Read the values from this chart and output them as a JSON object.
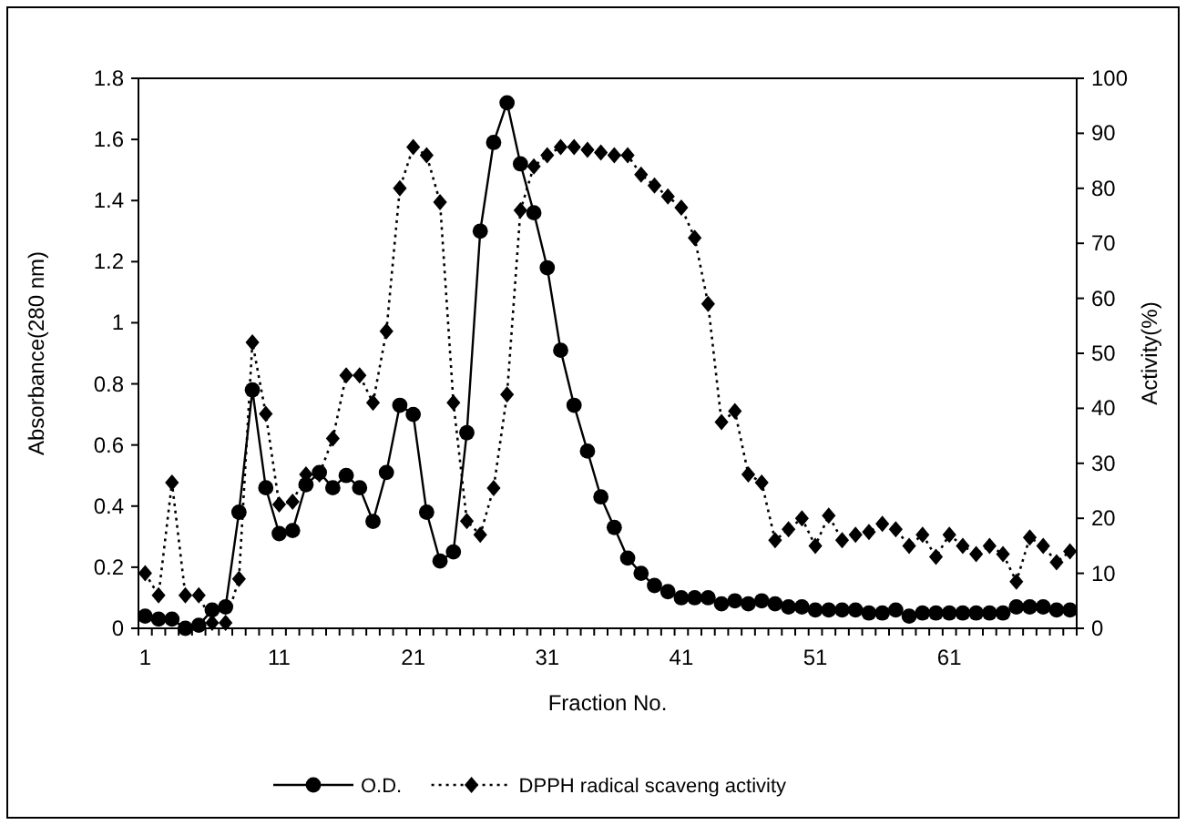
{
  "chart_data": {
    "type": "line",
    "xlabel": "Fraction No.",
    "ylabel": "Absorbance(280 nm)",
    "y2label": "Activity(%)",
    "categories": [
      "1",
      null,
      null,
      null,
      null,
      null,
      null,
      null,
      null,
      null,
      "11",
      null,
      null,
      null,
      null,
      null,
      null,
      null,
      null,
      null,
      "21",
      null,
      null,
      null,
      null,
      null,
      null,
      null,
      null,
      null,
      "31",
      null,
      null,
      null,
      null,
      null,
      null,
      null,
      null,
      null,
      "41",
      null,
      null,
      null,
      null,
      null,
      null,
      null,
      null,
      null,
      "51",
      null,
      null,
      null,
      null,
      null,
      null,
      null,
      null,
      null,
      "61",
      null,
      null,
      null,
      null,
      null,
      null,
      null,
      null,
      null
    ],
    "ylim": [
      0,
      1.8
    ],
    "yticks": [
      0,
      0.2,
      0.4,
      0.6,
      0.8,
      1,
      1.2,
      1.4,
      1.6,
      1.8
    ],
    "y2lim": [
      0,
      100
    ],
    "y2ticks": [
      0,
      10,
      20,
      30,
      40,
      50,
      60,
      70,
      80,
      90,
      100
    ],
    "legend": "bottom",
    "grid": false,
    "series": [
      {
        "name": "O.D.",
        "color": "#000000",
        "marker": "circle",
        "line_style": "solid",
        "values": [
          0.04,
          0.03,
          0.03,
          0.0,
          0.01,
          0.06,
          0.07,
          0.38,
          0.78,
          0.46,
          0.31,
          0.32,
          0.47,
          0.51,
          0.46,
          0.5,
          0.46,
          0.35,
          0.51,
          0.73,
          0.7,
          0.38,
          0.22,
          0.25,
          0.64,
          1.3,
          1.59,
          1.72,
          1.52,
          1.36,
          1.18,
          0.91,
          0.73,
          0.58,
          0.43,
          0.33,
          0.23,
          0.18,
          0.14,
          0.12,
          0.1,
          0.1,
          0.1,
          0.08,
          0.09,
          0.08,
          0.09,
          0.08,
          0.07,
          0.07,
          0.06,
          0.06,
          0.06,
          0.06,
          0.05,
          0.05,
          0.06,
          0.04,
          0.05,
          0.05,
          0.05,
          0.05,
          0.05,
          0.05,
          0.05,
          0.07,
          0.07,
          0.07,
          0.06,
          0.06
        ]
      },
      {
        "name": "DPPH radical scaveng activity",
        "color": "#000000",
        "marker": "diamond",
        "line_style": "dotted",
        "axis": "y2",
        "values": [
          10,
          6,
          26.5,
          6,
          6,
          1,
          1,
          9,
          52,
          39,
          22.5,
          23,
          28,
          28,
          34.5,
          46,
          46,
          41,
          54,
          80,
          87.5,
          86,
          77.5,
          41,
          19.5,
          17,
          25.5,
          42.5,
          76,
          84,
          86,
          87.5,
          87.5,
          87,
          86.5,
          86,
          86,
          82.5,
          80.5,
          78.5,
          76.5,
          71,
          59,
          37.5,
          39.5,
          28,
          26.5,
          16,
          18,
          20,
          15,
          20.5,
          16,
          17,
          17.5,
          19,
          18,
          15,
          17,
          13,
          17,
          15,
          13.5,
          15,
          13.5,
          8.5,
          16.5,
          15,
          12,
          14
        ]
      }
    ]
  }
}
